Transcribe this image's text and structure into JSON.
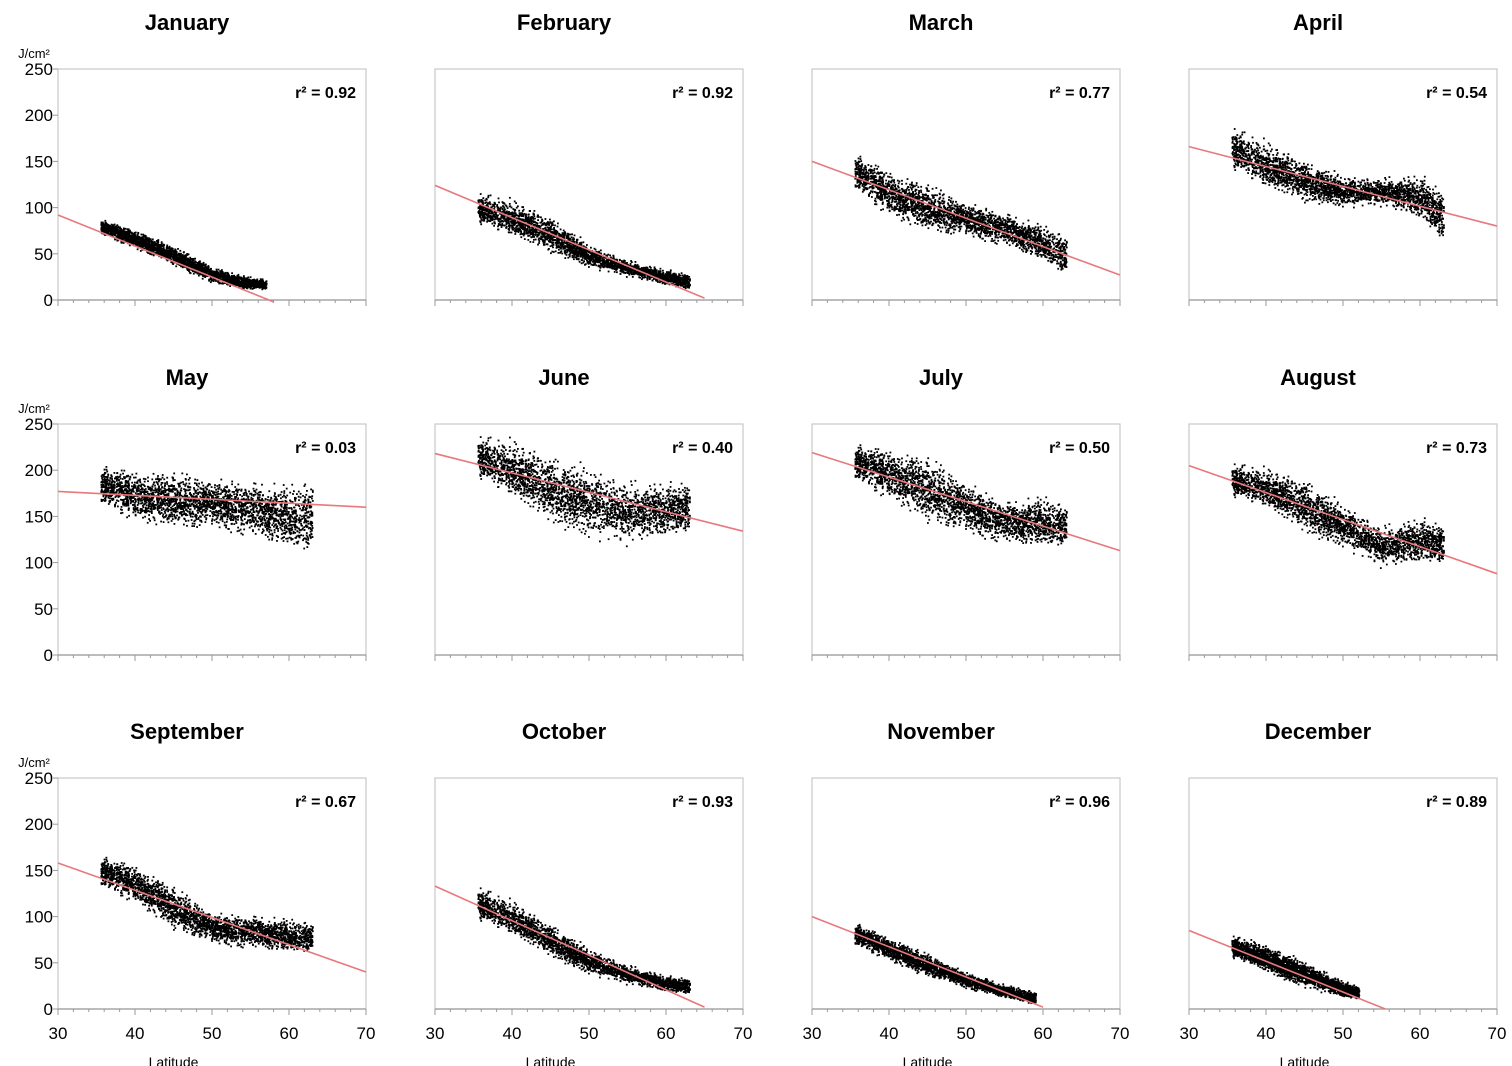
{
  "colors": {
    "points": "#000000",
    "fit_line": "#e8787c",
    "frame": "#c8c8c8",
    "text": "#000000"
  },
  "chart_data": [
    {
      "type": "scatter",
      "title": "January",
      "r2_label": "r² = 0.92",
      "ylabel": "J/cm²",
      "xlabel": "",
      "xlim": [
        30,
        70
      ],
      "ylim": [
        0,
        250
      ],
      "x_ticks": [],
      "y_ticks": [
        0,
        50,
        100,
        150,
        200,
        250
      ],
      "x_range": [
        35.5,
        57
      ],
      "cloud": [
        [
          35.5,
          80,
          12
        ],
        [
          40,
          66,
          14
        ],
        [
          45,
          48,
          14
        ],
        [
          50,
          28,
          12
        ],
        [
          54,
          20,
          10
        ],
        [
          57,
          17,
          8
        ]
      ],
      "fit": {
        "x": [
          30,
          58
        ],
        "y": [
          92,
          -2
        ]
      }
    },
    {
      "type": "scatter",
      "title": "February",
      "r2_label": "r² = 0.92",
      "ylabel": "",
      "xlabel": "",
      "xlim": [
        30,
        70
      ],
      "ylim": [
        0,
        250
      ],
      "x_ticks": [],
      "y_ticks": [],
      "x_range": [
        35.5,
        63
      ],
      "cloud": [
        [
          35.5,
          100,
          22
        ],
        [
          40,
          88,
          28
        ],
        [
          45,
          72,
          26
        ],
        [
          50,
          48,
          16
        ],
        [
          55,
          35,
          12
        ],
        [
          60,
          25,
          12
        ],
        [
          63,
          20,
          12
        ]
      ],
      "fit": {
        "x": [
          30,
          65
        ],
        "y": [
          124,
          2
        ]
      }
    },
    {
      "type": "scatter",
      "title": "March",
      "r2_label": "r² = 0.77",
      "ylabel": "",
      "xlabel": "",
      "xlim": [
        30,
        70
      ],
      "ylim": [
        0,
        250
      ],
      "x_ticks": [],
      "y_ticks": [],
      "x_range": [
        35.5,
        63
      ],
      "cloud": [
        [
          35.5,
          140,
          28
        ],
        [
          40,
          115,
          36
        ],
        [
          45,
          100,
          34
        ],
        [
          50,
          88,
          26
        ],
        [
          55,
          78,
          24
        ],
        [
          60,
          62,
          28
        ],
        [
          63,
          48,
          30
        ]
      ],
      "fit": {
        "x": [
          30,
          70
        ],
        "y": [
          150,
          27
        ]
      }
    },
    {
      "type": "scatter",
      "title": "April",
      "r2_label": "r² = 0.54",
      "ylabel": "",
      "xlabel": "",
      "xlim": [
        30,
        70
      ],
      "ylim": [
        0,
        250
      ],
      "x_ticks": [],
      "y_ticks": [],
      "x_range": [
        35.5,
        63
      ],
      "cloud": [
        [
          35.5,
          165,
          30
        ],
        [
          40,
          145,
          36
        ],
        [
          45,
          130,
          30
        ],
        [
          50,
          118,
          22
        ],
        [
          55,
          118,
          20
        ],
        [
          60,
          112,
          34
        ],
        [
          63,
          90,
          40
        ]
      ],
      "fit": {
        "x": [
          30,
          70
        ],
        "y": [
          166,
          80
        ]
      }
    },
    {
      "type": "scatter",
      "title": "May",
      "r2_label": "r² = 0.03",
      "ylabel": "J/cm²",
      "xlabel": "",
      "xlim": [
        30,
        70
      ],
      "ylim": [
        0,
        250
      ],
      "x_ticks": [],
      "y_ticks": [
        0,
        50,
        100,
        150,
        200,
        250
      ],
      "x_range": [
        35.5,
        63
      ],
      "cloud": [
        [
          35.5,
          185,
          30
        ],
        [
          40,
          172,
          40
        ],
        [
          45,
          168,
          40
        ],
        [
          50,
          165,
          38
        ],
        [
          55,
          160,
          40
        ],
        [
          60,
          150,
          50
        ],
        [
          63,
          150,
          55
        ]
      ],
      "fit": {
        "x": [
          30,
          70
        ],
        "y": [
          177,
          160
        ]
      }
    },
    {
      "type": "scatter",
      "title": "June",
      "r2_label": "r² = 0.40",
      "ylabel": "",
      "xlabel": "",
      "xlim": [
        30,
        70
      ],
      "ylim": [
        0,
        250
      ],
      "x_ticks": [],
      "y_ticks": [],
      "x_range": [
        35.5,
        63
      ],
      "cloud": [
        [
          35.5,
          215,
          30
        ],
        [
          40,
          200,
          44
        ],
        [
          45,
          180,
          50
        ],
        [
          50,
          165,
          50
        ],
        [
          55,
          155,
          46
        ],
        [
          60,
          158,
          40
        ],
        [
          63,
          160,
          40
        ]
      ],
      "fit": {
        "x": [
          30,
          70
        ],
        "y": [
          218,
          134
        ]
      }
    },
    {
      "type": "scatter",
      "title": "July",
      "r2_label": "r² = 0.50",
      "ylabel": "",
      "xlabel": "",
      "xlim": [
        30,
        70
      ],
      "ylim": [
        0,
        250
      ],
      "x_ticks": [],
      "y_ticks": [],
      "x_range": [
        35.5,
        63
      ],
      "cloud": [
        [
          35.5,
          210,
          28
        ],
        [
          40,
          195,
          40
        ],
        [
          45,
          180,
          46
        ],
        [
          50,
          160,
          40
        ],
        [
          55,
          145,
          30
        ],
        [
          60,
          145,
          40
        ],
        [
          63,
          140,
          30
        ]
      ],
      "fit": {
        "x": [
          30,
          70
        ],
        "y": [
          219,
          113
        ]
      }
    },
    {
      "type": "scatter",
      "title": "August",
      "r2_label": "r² = 0.73",
      "ylabel": "",
      "xlabel": "",
      "xlim": [
        30,
        70
      ],
      "ylim": [
        0,
        250
      ],
      "x_ticks": [],
      "y_ticks": [],
      "x_range": [
        35.5,
        63
      ],
      "cloud": [
        [
          35.5,
          190,
          24
        ],
        [
          40,
          180,
          30
        ],
        [
          45,
          162,
          40
        ],
        [
          50,
          140,
          30
        ],
        [
          55,
          118,
          30
        ],
        [
          60,
          125,
          34
        ],
        [
          63,
          120,
          30
        ]
      ],
      "fit": {
        "x": [
          30,
          70
        ],
        "y": [
          205,
          88
        ]
      }
    },
    {
      "type": "scatter",
      "title": "September",
      "r2_label": "r² = 0.67",
      "ylabel": "J/cm²",
      "xlabel": "Latitude",
      "xlim": [
        30,
        70
      ],
      "ylim": [
        0,
        250
      ],
      "x_ticks": [
        30,
        40,
        50,
        60,
        70
      ],
      "y_ticks": [
        0,
        50,
        100,
        150,
        200,
        250
      ],
      "x_range": [
        35.5,
        63
      ],
      "cloud": [
        [
          35.5,
          150,
          24
        ],
        [
          40,
          135,
          30
        ],
        [
          45,
          110,
          30
        ],
        [
          50,
          88,
          24
        ],
        [
          55,
          85,
          24
        ],
        [
          60,
          80,
          26
        ],
        [
          63,
          78,
          22
        ]
      ],
      "fit": {
        "x": [
          30,
          70
        ],
        "y": [
          158,
          40
        ]
      }
    },
    {
      "type": "scatter",
      "title": "October",
      "r2_label": "r² = 0.93",
      "ylabel": "",
      "xlabel": "Latitude",
      "xlim": [
        30,
        70
      ],
      "ylim": [
        0,
        250
      ],
      "x_ticks": [
        30,
        40,
        50,
        60,
        70
      ],
      "y_ticks": [],
      "x_range": [
        35.5,
        63
      ],
      "cloud": [
        [
          35.5,
          115,
          24
        ],
        [
          40,
          98,
          26
        ],
        [
          45,
          75,
          24
        ],
        [
          50,
          52,
          18
        ],
        [
          55,
          38,
          14
        ],
        [
          60,
          28,
          12
        ],
        [
          63,
          25,
          12
        ]
      ],
      "fit": {
        "x": [
          30,
          65
        ],
        "y": [
          133,
          2
        ]
      }
    },
    {
      "type": "scatter",
      "title": "November",
      "r2_label": "r² = 0.96",
      "ylabel": "",
      "xlabel": "Latitude",
      "xlim": [
        30,
        70
      ],
      "ylim": [
        0,
        250
      ],
      "x_ticks": [
        30,
        40,
        50,
        60,
        70
      ],
      "y_ticks": [],
      "x_range": [
        35.5,
        59
      ],
      "cloud": [
        [
          35.5,
          82,
          18
        ],
        [
          40,
          65,
          18
        ],
        [
          45,
          48,
          16
        ],
        [
          50,
          32,
          12
        ],
        [
          55,
          20,
          10
        ],
        [
          59,
          12,
          10
        ]
      ],
      "fit": {
        "x": [
          30,
          60
        ],
        "y": [
          100,
          2
        ]
      }
    },
    {
      "type": "scatter",
      "title": "December",
      "r2_label": "r² = 0.89",
      "ylabel": "",
      "xlabel": "Latitude",
      "xlim": [
        30,
        70
      ],
      "ylim": [
        0,
        250
      ],
      "x_ticks": [
        30,
        40,
        50,
        60,
        70
      ],
      "y_ticks": [],
      "x_range": [
        35.5,
        52
      ],
      "cloud": [
        [
          35.5,
          68,
          16
        ],
        [
          40,
          55,
          20
        ],
        [
          45,
          38,
          18
        ],
        [
          50,
          22,
          12
        ],
        [
          52,
          18,
          10
        ]
      ],
      "fit": {
        "x": [
          30,
          55.5
        ],
        "y": [
          85,
          0
        ]
      }
    }
  ]
}
